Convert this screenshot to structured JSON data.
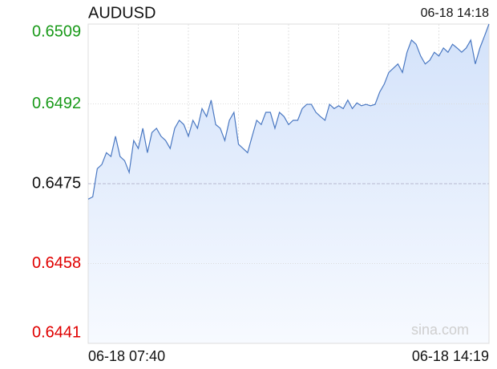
{
  "chart_data": {
    "type": "line",
    "title": "AUDUSD",
    "timestamp": "06-18 14:18",
    "watermark": "sina.com",
    "x_labels": [
      "06-18 07:40",
      "06-18 14:19"
    ],
    "color": "#4a78c2",
    "fill": "#d6e4fb",
    "up_color": "#1a9a1a",
    "down_color": "#e00000",
    "reference": 0.6475,
    "ylim": [
      0.6441,
      0.6509
    ],
    "yticks": [
      0.6441,
      0.6458,
      0.6475,
      0.6492,
      0.6509
    ],
    "grid": true,
    "values": [
      0.64717,
      0.64722,
      0.64782,
      0.64791,
      0.64816,
      0.64808,
      0.64851,
      0.64808,
      0.64799,
      0.64774,
      0.64842,
      0.64825,
      0.64868,
      0.64816,
      0.64859,
      0.64868,
      0.64851,
      0.64842,
      0.64825,
      0.64868,
      0.64885,
      0.64876,
      0.64851,
      0.64885,
      0.64868,
      0.6491,
      0.64893,
      0.64928,
      0.64876,
      0.64868,
      0.64842,
      0.64885,
      0.64902,
      0.64834,
      0.64825,
      0.64816,
      0.64851,
      0.64885,
      0.64876,
      0.64902,
      0.64902,
      0.64868,
      0.64902,
      0.64893,
      0.64876,
      0.64885,
      0.64885,
      0.6491,
      0.64919,
      0.64919,
      0.64902,
      0.64893,
      0.64885,
      0.64919,
      0.6491,
      0.64916,
      0.6491,
      0.64928,
      0.6491,
      0.64922,
      0.64916,
      0.64919,
      0.64916,
      0.64919,
      0.64945,
      0.64962,
      0.64987,
      0.64996,
      0.65005,
      0.64987,
      0.6503,
      0.65056,
      0.65047,
      0.65022,
      0.65005,
      0.65013,
      0.6503,
      0.65022,
      0.65039,
      0.6503,
      0.65047,
      0.65039,
      0.6503,
      0.65039,
      0.65056,
      0.65005,
      0.65039,
      0.65064,
      0.6509
    ]
  }
}
